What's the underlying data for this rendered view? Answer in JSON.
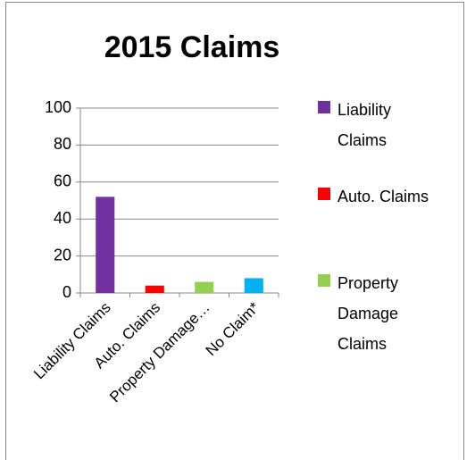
{
  "chart_data": {
    "type": "bar",
    "title": "2015 Claims",
    "categories": [
      "Liability Claims",
      "Auto. Claims",
      "Property Damage…",
      "No Claim*"
    ],
    "values": [
      52,
      4,
      6,
      8
    ],
    "colors": [
      "#7030a0",
      "#ff0000",
      "#92d050",
      "#00b0f0"
    ],
    "ylim": [
      0,
      100
    ],
    "yticks": [
      0,
      20,
      40,
      60,
      80,
      100
    ],
    "grid": true,
    "legend": {
      "position": "right",
      "entries": [
        "Liability Claims",
        "Auto. Claims",
        "Property Damage Claims"
      ]
    }
  }
}
